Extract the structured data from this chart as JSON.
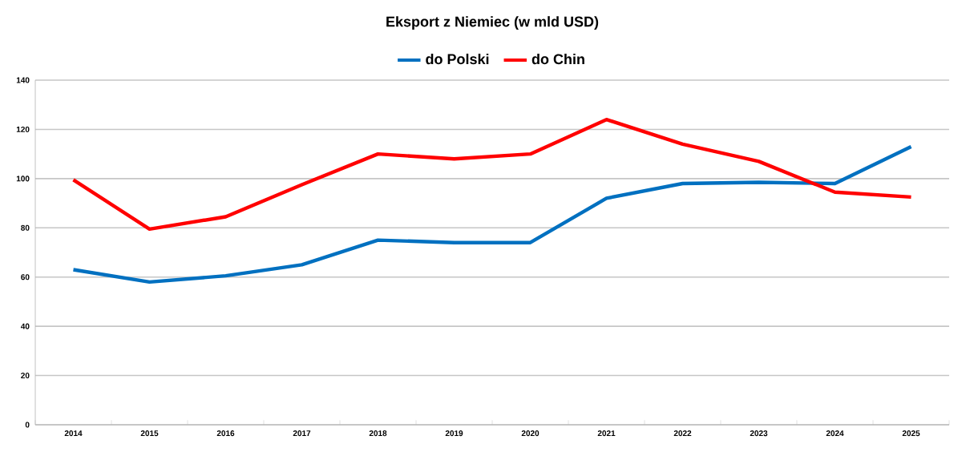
{
  "chart_data": {
    "type": "line",
    "title": "Eksport z Niemiec (w mld USD)",
    "categories": [
      "2014",
      "2015",
      "2016",
      "2017",
      "2018",
      "2019",
      "2020",
      "2021",
      "2022",
      "2023",
      "2024",
      "2025"
    ],
    "series": [
      {
        "name": "do Polski",
        "color": "#0070c0",
        "values": [
          63,
          58,
          60.5,
          65,
          75,
          74,
          74,
          92,
          98,
          98.5,
          98,
          113
        ]
      },
      {
        "name": "do Chin",
        "color": "#ff0000",
        "values": [
          99.5,
          79.5,
          84.5,
          97.5,
          110,
          108,
          110,
          124,
          114,
          107,
          94.5,
          92.5
        ]
      }
    ],
    "ylim": [
      0,
      140
    ],
    "yticks": [
      0,
      20,
      40,
      60,
      80,
      100,
      120,
      140
    ],
    "grid": "y",
    "legend": "top",
    "marker": "none",
    "line_style": "solid"
  }
}
